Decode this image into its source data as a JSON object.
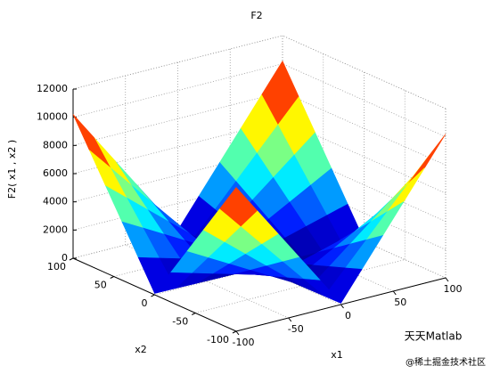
{
  "chart_data": {
    "type": "surface",
    "title": "F2",
    "xlabel": "x1",
    "ylabel": "x2",
    "zlabel": "F2( x1 , x2 )",
    "x": [
      -100,
      -80,
      -60,
      -40,
      -20,
      0,
      20,
      40,
      60,
      80,
      100
    ],
    "y": [
      -100,
      -80,
      -60,
      -40,
      -20,
      0,
      20,
      40,
      60,
      80,
      100
    ],
    "z": [
      [
        10200,
        8180,
        6160,
        4140,
        2120,
        100,
        2120,
        4140,
        6160,
        8180,
        10200
      ],
      [
        8180,
        6560,
        4940,
        3320,
        1700,
        80,
        1700,
        3320,
        4940,
        6560,
        8180
      ],
      [
        6160,
        4940,
        3720,
        2500,
        1280,
        60,
        1280,
        2500,
        3720,
        4940,
        6160
      ],
      [
        4140,
        3320,
        2500,
        1680,
        860,
        40,
        860,
        1680,
        2500,
        3320,
        4140
      ],
      [
        2120,
        1700,
        1280,
        860,
        440,
        20,
        440,
        860,
        1280,
        1700,
        2120
      ],
      [
        100,
        80,
        60,
        40,
        20,
        0,
        20,
        40,
        60,
        80,
        100
      ],
      [
        2120,
        1700,
        1280,
        860,
        440,
        20,
        440,
        860,
        1280,
        1700,
        2120
      ],
      [
        4140,
        3320,
        2500,
        1680,
        860,
        40,
        860,
        1680,
        2500,
        3320,
        4140
      ],
      [
        6160,
        4940,
        3720,
        2500,
        1280,
        60,
        1280,
        2500,
        3720,
        4940,
        6160
      ],
      [
        8180,
        6560,
        4940,
        3320,
        1700,
        80,
        1700,
        3320,
        4940,
        6560,
        8180
      ],
      [
        10200,
        8180,
        6160,
        4140,
        2120,
        100,
        2120,
        4140,
        6160,
        8180,
        10200
      ]
    ],
    "xlim": [
      -100,
      100
    ],
    "ylim": [
      -100,
      100
    ],
    "zlim": [
      0,
      12000
    ],
    "xticks": [
      -100,
      -50,
      0,
      50,
      100
    ],
    "yticks": [
      -100,
      -50,
      0,
      50,
      100
    ],
    "zticks": [
      0,
      2000,
      4000,
      6000,
      8000,
      10000,
      12000
    ],
    "colormap": "jet",
    "grid": true
  },
  "watermark": {
    "line1": "天天Matlab",
    "line2": "@稀土掘金技术社区"
  }
}
